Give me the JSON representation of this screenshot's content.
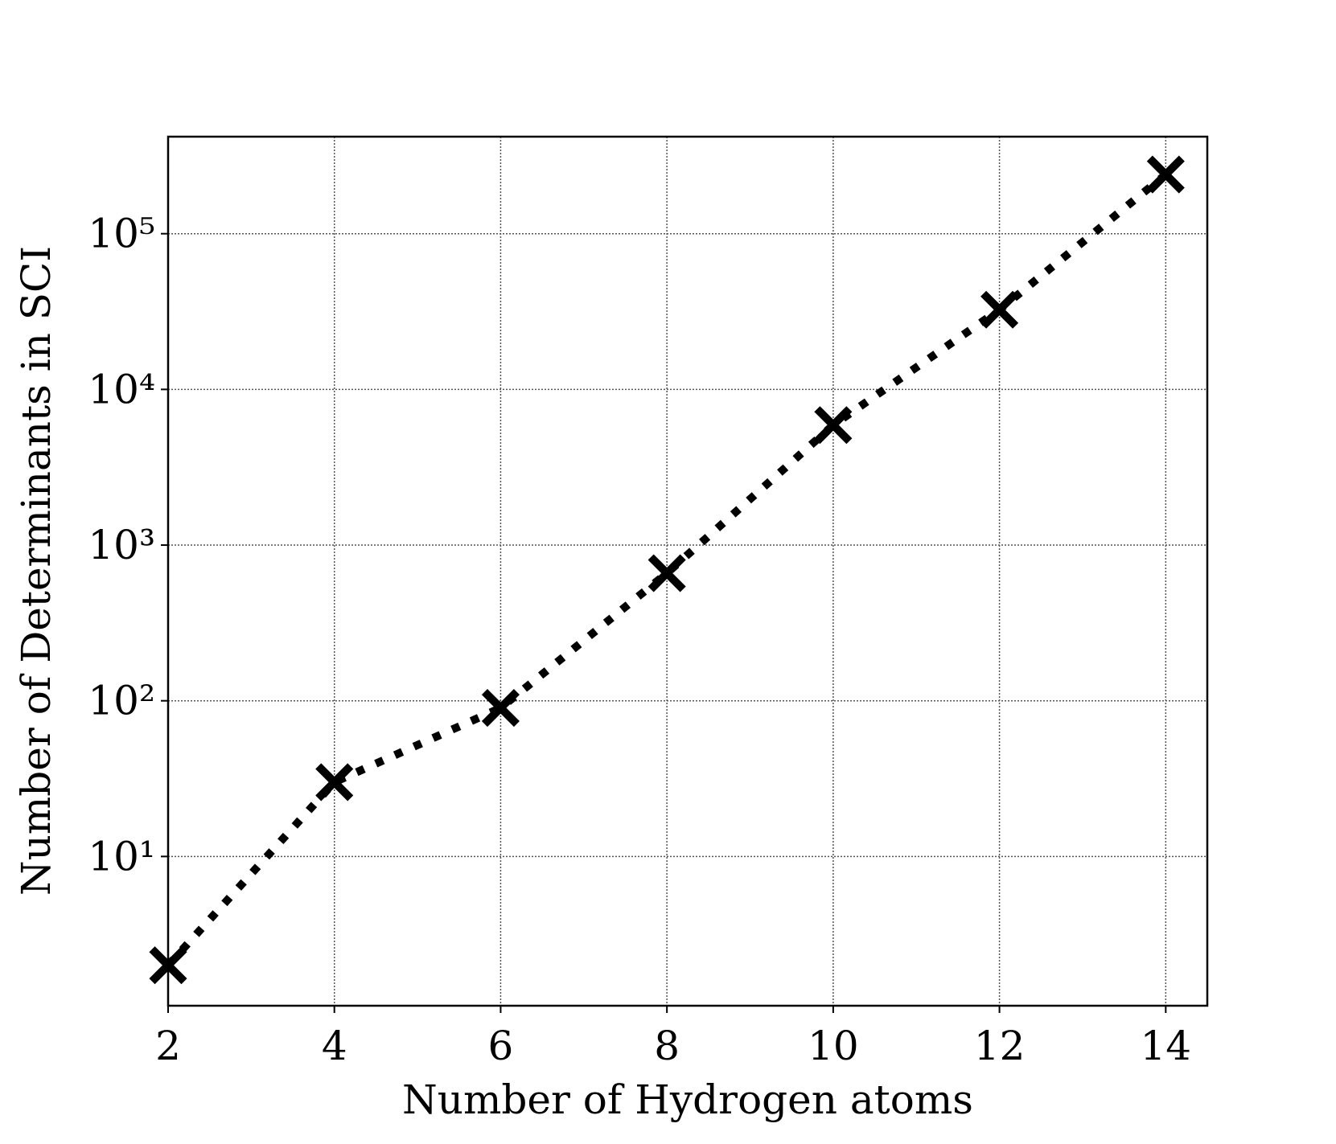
{
  "chart_data": {
    "type": "line",
    "xlabel": "Number of Hydrogen atoms",
    "ylabel": "Number of Determinants in SCI",
    "x": [
      2,
      4,
      6,
      8,
      10,
      12,
      14
    ],
    "series": [
      {
        "values": [
          2,
          30,
          90,
          660,
          5900,
          32500,
          240000
        ],
        "color": "#000000"
      }
    ],
    "xlim": [
      2,
      14.5
    ],
    "xticks": [
      2,
      4,
      6,
      8,
      10,
      12,
      14
    ],
    "ylim": [
      1.1,
      420000
    ],
    "yticks": [
      {
        "value": 10,
        "label": "10¹"
      },
      {
        "value": 100,
        "label": "10²"
      },
      {
        "value": 1000,
        "label": "10³"
      },
      {
        "value": 10000,
        "label": "10⁴"
      },
      {
        "value": 100000,
        "label": "10⁵"
      }
    ],
    "yscale": "log",
    "grid": true
  }
}
